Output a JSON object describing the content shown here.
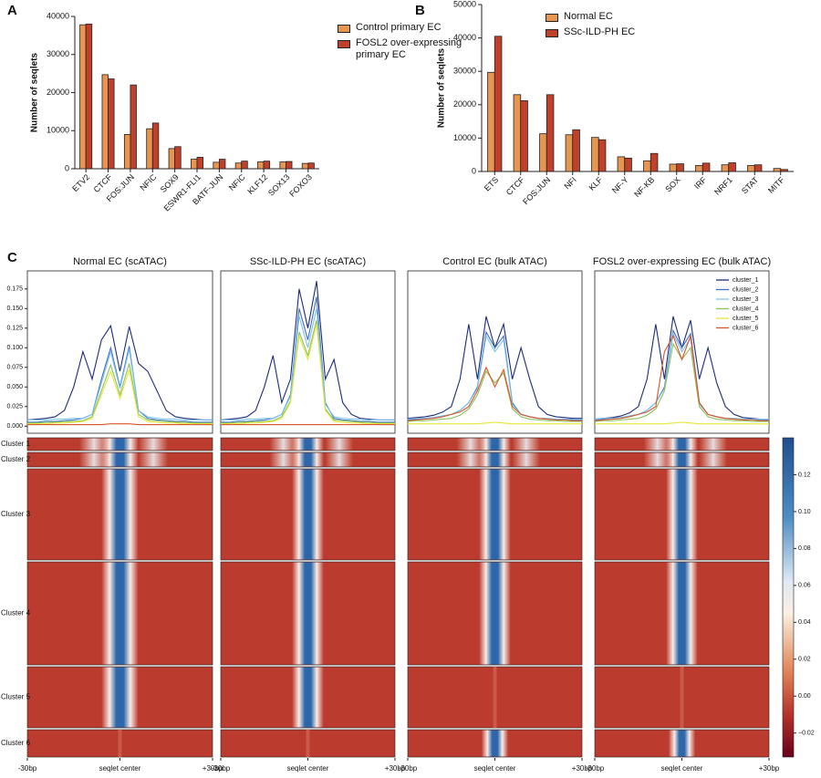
{
  "chart_data": [
    {
      "type": "bar",
      "panel_label": "A",
      "ylabel": "Number of seqlets",
      "categories": [
        "ETV2",
        "CTCF",
        "FOS:JUN",
        "NFIC",
        "SOX9",
        "ESWR1-FLI1",
        "BATF-JUN",
        "NFIC",
        "KLF12",
        "SOX13",
        "FOXO3"
      ],
      "series": [
        {
          "name": "Control primary EC",
          "color": "#e8964f",
          "values": [
            37800,
            24700,
            9000,
            10500,
            5300,
            2500,
            1700,
            1500,
            1800,
            1800,
            1400
          ]
        },
        {
          "name": "FOSL2 over-expressing primary EC",
          "color": "#c0412b",
          "values": [
            38000,
            23600,
            22000,
            12000,
            5800,
            3000,
            2500,
            2000,
            2000,
            1900,
            1500
          ]
        }
      ],
      "ylim": [
        0,
        40000
      ],
      "yticks": [
        0,
        10000,
        20000,
        30000,
        40000
      ]
    },
    {
      "type": "bar",
      "panel_label": "B",
      "ylabel": "Number of seqlets",
      "categories": [
        "ETS",
        "CTCF",
        "FOS:JUN",
        "NFI",
        "KLF",
        "NF-Y",
        "NF-KB",
        "SOX",
        "IRF",
        "NRF1",
        "STAT",
        "MITF"
      ],
      "series": [
        {
          "name": "Normal EC",
          "color": "#e8964f",
          "values": [
            29700,
            23000,
            11300,
            11000,
            10200,
            4400,
            3200,
            2200,
            1800,
            2000,
            1800,
            900
          ]
        },
        {
          "name": "SSc-ILD-PH EC",
          "color": "#c0412b",
          "values": [
            40500,
            21200,
            23000,
            12500,
            9500,
            4000,
            5400,
            2300,
            2500,
            2600,
            2000,
            600
          ]
        }
      ],
      "ylim": [
        0,
        50000
      ],
      "yticks": [
        0,
        10000,
        20000,
        30000,
        40000,
        50000
      ]
    },
    {
      "type": "line",
      "panel_label": "C",
      "title": "Normal EC (scATAC)",
      "x": [
        -30,
        -27,
        -24,
        -21,
        -18,
        -15,
        -12,
        -9,
        -6,
        -3,
        0,
        3,
        6,
        9,
        12,
        15,
        18,
        21,
        24,
        27,
        30
      ],
      "xlim": [
        -30,
        30
      ],
      "xticks": [
        {
          "value": -30,
          "label": "-30bp"
        },
        {
          "value": 0,
          "label": "seqlet center"
        },
        {
          "value": 30,
          "label": "+30bp"
        }
      ],
      "ylim": [
        -0.009,
        0.198
      ],
      "yticks": [
        {
          "value": 0,
          "label": "0.000"
        },
        0.025,
        {
          "value": 0.05,
          "label": "0.050"
        },
        0.075,
        {
          "value": 0.1,
          "label": "0.100"
        },
        0.125,
        {
          "value": 0.15,
          "label": "0.150"
        },
        0.175
      ],
      "series": [
        {
          "color": "#1f2a7a",
          "values": [
            0.008,
            0.009,
            0.01,
            0.012,
            0.02,
            0.05,
            0.095,
            0.06,
            0.11,
            0.128,
            0.07,
            0.127,
            0.08,
            0.07,
            0.045,
            0.02,
            0.012,
            0.01,
            0.009,
            0.008,
            0.008
          ]
        },
        {
          "color": "#3f6fc8",
          "values": [
            0.005,
            0.005,
            0.006,
            0.006,
            0.007,
            0.008,
            0.01,
            0.015,
            0.06,
            0.1,
            0.05,
            0.102,
            0.02,
            0.01,
            0.008,
            0.007,
            0.006,
            0.006,
            0.005,
            0.005,
            0.005
          ]
        },
        {
          "color": "#7cc4e8",
          "values": [
            0.008,
            0.008,
            0.008,
            0.009,
            0.009,
            0.01,
            0.01,
            0.015,
            0.055,
            0.095,
            0.048,
            0.098,
            0.02,
            0.012,
            0.01,
            0.009,
            0.009,
            0.008,
            0.008,
            0.008,
            0.008
          ]
        },
        {
          "color": "#8cc15a",
          "values": [
            0.004,
            0.004,
            0.005,
            0.005,
            0.006,
            0.006,
            0.007,
            0.012,
            0.045,
            0.078,
            0.04,
            0.08,
            0.015,
            0.008,
            0.007,
            0.006,
            0.005,
            0.005,
            0.004,
            0.004,
            0.004
          ]
        },
        {
          "color": "#e6e63a",
          "values": [
            0.003,
            0.003,
            0.003,
            0.004,
            0.004,
            0.005,
            0.006,
            0.01,
            0.04,
            0.07,
            0.035,
            0.072,
            0.012,
            0.006,
            0.005,
            0.004,
            0.004,
            0.003,
            0.003,
            0.003,
            0.003
          ]
        },
        {
          "color": "#d9542a",
          "values": [
            0.002,
            0.002,
            0.002,
            0.002,
            0.002,
            0.002,
            0.002,
            0.002,
            0.002,
            0.003,
            0.003,
            0.003,
            0.002,
            0.002,
            0.002,
            0.002,
            0.002,
            0.002,
            0.002,
            0.002,
            0.002
          ]
        }
      ]
    },
    {
      "type": "line",
      "title": "SSc-ILD-PH EC (scATAC)",
      "x": [
        -30,
        -27,
        -24,
        -21,
        -18,
        -15,
        -12,
        -9,
        -6,
        -3,
        0,
        3,
        6,
        9,
        12,
        15,
        18,
        21,
        24,
        27,
        30
      ],
      "xlim": [
        -30,
        30
      ],
      "xticks": [
        {
          "value": -30,
          "label": "-30bp"
        },
        {
          "value": 0,
          "label": "seqlet center"
        },
        {
          "value": 30,
          "label": "+30bp"
        }
      ],
      "ylim": [
        -0.009,
        0.198
      ],
      "series": [
        {
          "color": "#1f2a7a",
          "values": [
            0.008,
            0.009,
            0.01,
            0.012,
            0.02,
            0.05,
            0.09,
            0.03,
            0.06,
            0.175,
            0.125,
            0.185,
            0.06,
            0.085,
            0.03,
            0.015,
            0.01,
            0.009,
            0.008,
            0.008,
            0.008
          ]
        },
        {
          "color": "#3f6fc8",
          "values": [
            0.005,
            0.005,
            0.006,
            0.006,
            0.007,
            0.008,
            0.01,
            0.015,
            0.04,
            0.15,
            0.11,
            0.165,
            0.03,
            0.01,
            0.008,
            0.007,
            0.006,
            0.006,
            0.005,
            0.005,
            0.005
          ]
        },
        {
          "color": "#7cc4e8",
          "values": [
            0.008,
            0.008,
            0.008,
            0.009,
            0.009,
            0.01,
            0.01,
            0.015,
            0.038,
            0.14,
            0.1,
            0.15,
            0.028,
            0.012,
            0.01,
            0.009,
            0.009,
            0.008,
            0.008,
            0.008,
            0.008
          ]
        },
        {
          "color": "#8cc15a",
          "values": [
            0.004,
            0.004,
            0.005,
            0.005,
            0.006,
            0.006,
            0.007,
            0.012,
            0.032,
            0.12,
            0.09,
            0.135,
            0.022,
            0.008,
            0.007,
            0.006,
            0.005,
            0.005,
            0.004,
            0.004,
            0.004
          ]
        },
        {
          "color": "#e6e63a",
          "values": [
            0.003,
            0.003,
            0.003,
            0.004,
            0.004,
            0.005,
            0.006,
            0.01,
            0.03,
            0.115,
            0.085,
            0.13,
            0.02,
            0.006,
            0.005,
            0.004,
            0.004,
            0.003,
            0.003,
            0.003,
            0.003
          ]
        },
        {
          "color": "#d9542a",
          "values": [
            0.002,
            0.002,
            0.002,
            0.002,
            0.002,
            0.002,
            0.002,
            0.002,
            0.002,
            0.002,
            0.002,
            0.002,
            0.002,
            0.002,
            0.002,
            0.002,
            0.002,
            0.002,
            0.002,
            0.002,
            0.002
          ]
        }
      ]
    },
    {
      "type": "line",
      "title": "Control EC (bulk ATAC)",
      "x": [
        -30,
        -27,
        -24,
        -21,
        -18,
        -15,
        -12,
        -9,
        -6,
        -3,
        0,
        3,
        6,
        9,
        12,
        15,
        18,
        21,
        24,
        27,
        30
      ],
      "xlim": [
        -30,
        30
      ],
      "xticks": [
        {
          "value": -30,
          "label": "-30bp"
        },
        {
          "value": 0,
          "label": "seqlet center"
        },
        {
          "value": 30,
          "label": "+30bp"
        }
      ],
      "ylim": [
        -0.009,
        0.198
      ],
      "series": [
        {
          "color": "#1f2a7a",
          "values": [
            0.01,
            0.011,
            0.012,
            0.014,
            0.018,
            0.025,
            0.06,
            0.13,
            0.06,
            0.14,
            0.1,
            0.13,
            0.06,
            0.1,
            0.06,
            0.025,
            0.015,
            0.012,
            0.011,
            0.01,
            0.01
          ]
        },
        {
          "color": "#3f6fc8",
          "values": [
            0.008,
            0.009,
            0.01,
            0.011,
            0.013,
            0.015,
            0.02,
            0.03,
            0.05,
            0.12,
            0.1,
            0.115,
            0.03,
            0.015,
            0.012,
            0.01,
            0.009,
            0.008,
            0.008,
            0.008,
            0.008
          ]
        },
        {
          "color": "#7cc4e8",
          "values": [
            0.009,
            0.01,
            0.01,
            0.011,
            0.013,
            0.015,
            0.02,
            0.03,
            0.048,
            0.115,
            0.095,
            0.11,
            0.028,
            0.015,
            0.012,
            0.01,
            0.01,
            0.009,
            0.009,
            0.009,
            0.009
          ]
        },
        {
          "color": "#8cc15a",
          "values": [
            0.006,
            0.007,
            0.007,
            0.008,
            0.009,
            0.01,
            0.014,
            0.022,
            0.04,
            0.07,
            0.055,
            0.068,
            0.022,
            0.012,
            0.009,
            0.008,
            0.007,
            0.007,
            0.006,
            0.006,
            0.006
          ]
        },
        {
          "color": "#e6e63a",
          "values": [
            0.003,
            0.003,
            0.003,
            0.003,
            0.003,
            0.003,
            0.003,
            0.003,
            0.003,
            0.004,
            0.005,
            0.004,
            0.003,
            0.003,
            0.003,
            0.003,
            0.003,
            0.003,
            0.003,
            0.003,
            0.003
          ]
        },
        {
          "color": "#d9542a",
          "values": [
            0.007,
            0.008,
            0.009,
            0.01,
            0.012,
            0.015,
            0.018,
            0.025,
            0.045,
            0.075,
            0.05,
            0.072,
            0.025,
            0.015,
            0.012,
            0.01,
            0.009,
            0.008,
            0.008,
            0.007,
            0.007
          ]
        }
      ]
    },
    {
      "type": "line",
      "title": "FOSL2 over-expressing EC (bulk ATAC)",
      "x": [
        -30,
        -27,
        -24,
        -21,
        -18,
        -15,
        -12,
        -9,
        -6,
        -3,
        0,
        3,
        6,
        9,
        12,
        15,
        18,
        21,
        24,
        27,
        30
      ],
      "xlim": [
        -30,
        30
      ],
      "xticks": [
        {
          "value": -30,
          "label": "-30bp"
        },
        {
          "value": 0,
          "label": "seqlet center"
        },
        {
          "value": 30,
          "label": "+30bp"
        }
      ],
      "ylim": [
        -0.009,
        0.198
      ],
      "series": [
        {
          "name": "cluster_1",
          "color": "#1f2a7a",
          "values": [
            0.009,
            0.01,
            0.011,
            0.013,
            0.017,
            0.025,
            0.06,
            0.13,
            0.06,
            0.14,
            0.1,
            0.135,
            0.06,
            0.1,
            0.055,
            0.025,
            0.015,
            0.011,
            0.01,
            0.009,
            0.009
          ]
        },
        {
          "name": "cluster_2",
          "color": "#3f6fc8",
          "values": [
            0.008,
            0.009,
            0.01,
            0.011,
            0.013,
            0.015,
            0.02,
            0.03,
            0.05,
            0.122,
            0.1,
            0.118,
            0.03,
            0.015,
            0.012,
            0.01,
            0.009,
            0.008,
            0.008,
            0.008,
            0.008
          ]
        },
        {
          "name": "cluster_3",
          "color": "#7cc4e8",
          "values": [
            0.009,
            0.01,
            0.01,
            0.011,
            0.013,
            0.015,
            0.02,
            0.03,
            0.048,
            0.118,
            0.095,
            0.112,
            0.028,
            0.015,
            0.012,
            0.01,
            0.01,
            0.009,
            0.009,
            0.009,
            0.009
          ]
        },
        {
          "name": "cluster_4",
          "color": "#8cc15a",
          "values": [
            0.006,
            0.007,
            0.007,
            0.008,
            0.009,
            0.01,
            0.014,
            0.022,
            0.045,
            0.105,
            0.085,
            0.1,
            0.025,
            0.012,
            0.009,
            0.008,
            0.007,
            0.007,
            0.006,
            0.006,
            0.006
          ]
        },
        {
          "name": "cluster_5",
          "color": "#e6e63a",
          "values": [
            0.003,
            0.003,
            0.003,
            0.003,
            0.003,
            0.003,
            0.003,
            0.003,
            0.003,
            0.004,
            0.005,
            0.004,
            0.003,
            0.003,
            0.003,
            0.003,
            0.003,
            0.003,
            0.003,
            0.003,
            0.003
          ]
        },
        {
          "name": "cluster_6",
          "color": "#d9542a",
          "values": [
            0.007,
            0.008,
            0.009,
            0.01,
            0.012,
            0.015,
            0.018,
            0.025,
            0.095,
            0.115,
            0.085,
            0.115,
            0.03,
            0.015,
            0.012,
            0.01,
            0.009,
            0.008,
            0.008,
            0.007,
            0.007
          ]
        }
      ]
    },
    {
      "type": "heatmap",
      "row_labels": [
        "Cluster 1",
        "Cluster 2",
        "Cluster 3",
        "Cluster 4",
        "Cluster 5",
        "Cluster 6"
      ],
      "clim": [
        -0.033,
        0.14
      ],
      "cticks": [
        {
          "value": -0.02,
          "label": "−0.02"
        },
        {
          "value": 0,
          "label": "0.00"
        },
        0.02,
        0.04,
        0.06,
        0.08,
        {
          "value": 0.1,
          "label": "0.10"
        },
        0.12
      ]
    }
  ]
}
